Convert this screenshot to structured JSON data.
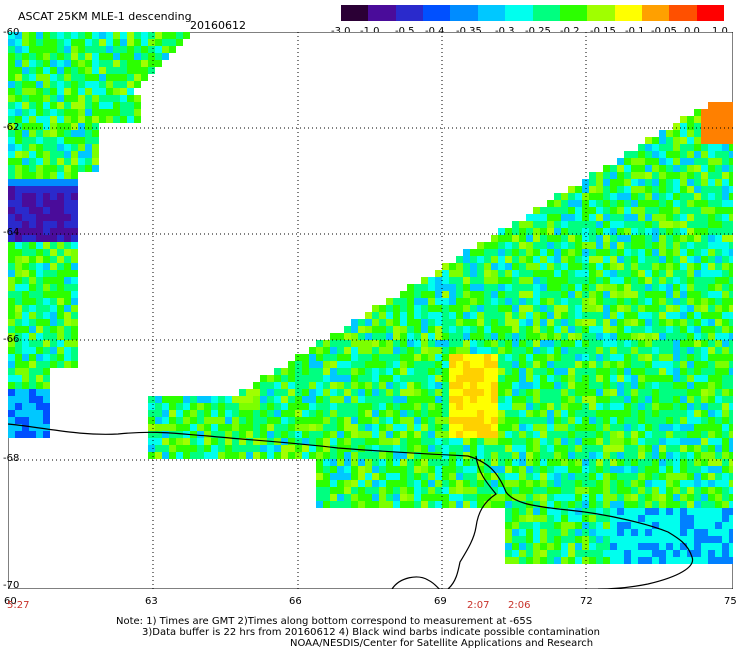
{
  "header": {
    "title": "ASCAT 25KM MLE-1 descending",
    "date": "20160612"
  },
  "colorbar": {
    "labels": [
      "-3.0",
      "-1.0",
      "-0.5",
      "-0.4",
      "-0.35",
      "-0.3",
      "-0.25",
      "-0.2",
      "-0.15",
      "-0.1",
      "-0.05",
      "0.0",
      "1.0"
    ],
    "colors": [
      "#2b0035",
      "#4a0c9a",
      "#2a2acc",
      "#0050ff",
      "#008cff",
      "#00c8ff",
      "#00ffee",
      "#00ff80",
      "#2cff00",
      "#a0ff00",
      "#ffff00",
      "#ffa000",
      "#ff5000",
      "#ff0000"
    ]
  },
  "map": {
    "lat_labels": [
      "-60",
      "-62",
      "-64",
      "-66",
      "-68",
      "-70"
    ],
    "lon_labels": [
      "60",
      "63",
      "66",
      "69",
      "72",
      "75"
    ],
    "times": [
      "5:27",
      "2:07",
      "2:06"
    ]
  },
  "notes": {
    "line1": "Note: 1) Times are GMT 2)Times along bottom correspond to measurement at -65S",
    "line2": "3)Data buffer is 22 hrs from 20160612 4) Black wind barbs indicate possible contamination",
    "line3": "NOAA/NESDIS/Center for Satellite Applications and Research"
  }
}
